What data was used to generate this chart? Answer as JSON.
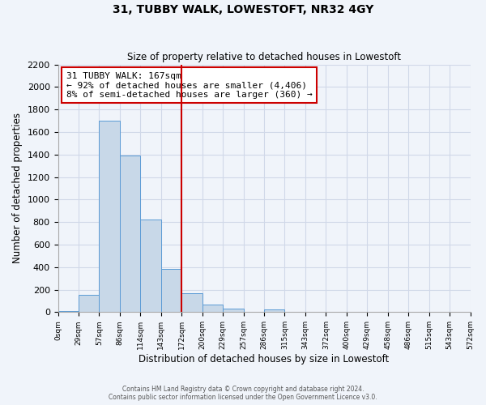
{
  "title": "31, TUBBY WALK, LOWESTOFT, NR32 4GY",
  "subtitle": "Size of property relative to detached houses in Lowestoft",
  "xlabel": "Distribution of detached houses by size in Lowestoft",
  "ylabel": "Number of detached properties",
  "bin_labels": [
    "0sqm",
    "29sqm",
    "57sqm",
    "86sqm",
    "114sqm",
    "143sqm",
    "172sqm",
    "200sqm",
    "229sqm",
    "257sqm",
    "286sqm",
    "315sqm",
    "343sqm",
    "372sqm",
    "400sqm",
    "429sqm",
    "458sqm",
    "486sqm",
    "515sqm",
    "543sqm",
    "572sqm"
  ],
  "counts": [
    10,
    155,
    1700,
    1390,
    825,
    385,
    165,
    65,
    30,
    0,
    25,
    0,
    0,
    0,
    0,
    0,
    0,
    0,
    0,
    0
  ],
  "bar_facecolor": "#c8d8e8",
  "bar_edgecolor": "#5b9bd5",
  "property_line_bin": 6,
  "property_line_color": "#cc0000",
  "annotation_text": "31 TUBBY WALK: 167sqm\n← 92% of detached houses are smaller (4,406)\n8% of semi-detached houses are larger (360) →",
  "annotation_box_edgecolor": "#cc0000",
  "annotation_box_facecolor": "#ffffff",
  "ylim": [
    0,
    2200
  ],
  "yticks": [
    0,
    200,
    400,
    600,
    800,
    1000,
    1200,
    1400,
    1600,
    1800,
    2000,
    2200
  ],
  "grid_color": "#d0d8e8",
  "background_color": "#f0f4fa",
  "footer_line1": "Contains HM Land Registry data © Crown copyright and database right 2024.",
  "footer_line2": "Contains public sector information licensed under the Open Government Licence v3.0."
}
